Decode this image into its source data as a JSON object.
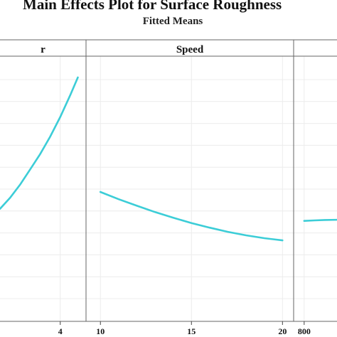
{
  "chart_data": {
    "type": "line",
    "title": "Main Effects Plot for Surface Roughness",
    "subtitle": "Fitted Means",
    "ylim": [
      0,
      1
    ],
    "panels": [
      {
        "strip": "r",
        "xlim": [
          1.6,
          4.8
        ],
        "ticks": [
          {
            "value": 4,
            "label": "4"
          }
        ],
        "x": [
          1.6,
          2.0,
          2.4,
          2.8,
          3.2,
          3.6,
          4.0,
          4.4,
          4.7
        ],
        "y": [
          0.41,
          0.46,
          0.52,
          0.59,
          0.66,
          0.74,
          0.83,
          0.93,
          1.01
        ]
      },
      {
        "strip": "Speed",
        "xlim": [
          9.6,
          20.3
        ],
        "ticks": [
          {
            "value": 10,
            "label": "10"
          },
          {
            "value": 15,
            "label": "15"
          },
          {
            "value": 20,
            "label": "20"
          }
        ],
        "x": [
          10,
          11,
          12,
          13,
          14,
          15,
          16,
          17,
          18,
          19,
          20
        ],
        "y": [
          0.487,
          0.454,
          0.424,
          0.395,
          0.369,
          0.345,
          0.324,
          0.305,
          0.289,
          0.276,
          0.266
        ]
      },
      {
        "strip": "",
        "xlim": [
          790,
          900
        ],
        "ticks": [
          {
            "value": 800,
            "label": "800"
          }
        ],
        "x": [
          800,
          830,
          860,
          900
        ],
        "y": [
          0.355,
          0.357,
          0.359,
          0.36
        ]
      }
    ],
    "color": "#3ccdd7",
    "grid": true
  }
}
